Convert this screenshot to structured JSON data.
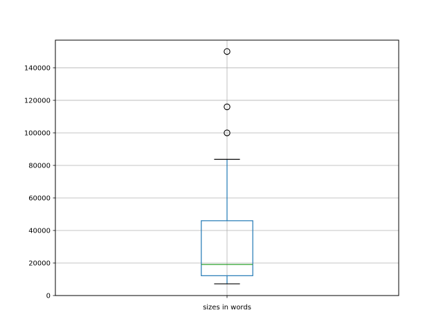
{
  "chart_data": {
    "type": "boxplot",
    "title": "",
    "xlabel": "",
    "ylabel": "",
    "categories": [
      "sizes in words"
    ],
    "ylim": [
      0,
      157000
    ],
    "yticks": [
      0,
      20000,
      40000,
      60000,
      80000,
      100000,
      120000,
      140000
    ],
    "ytick_labels": [
      "0",
      "20000",
      "40000",
      "60000",
      "80000",
      "100000",
      "120000",
      "140000"
    ],
    "grid": true,
    "boxes": [
      {
        "name": "sizes in words",
        "whisker_low": 7200,
        "q1": 12200,
        "median": 19100,
        "q3": 46000,
        "whisker_high": 83700,
        "outliers": [
          100000,
          116000,
          150000
        ]
      }
    ],
    "colors": {
      "box": "#1f77b4",
      "median": "#2ca02c",
      "whisker_cap": "#000000",
      "grid": "#b0b0b0",
      "outlier": "#000000"
    }
  }
}
